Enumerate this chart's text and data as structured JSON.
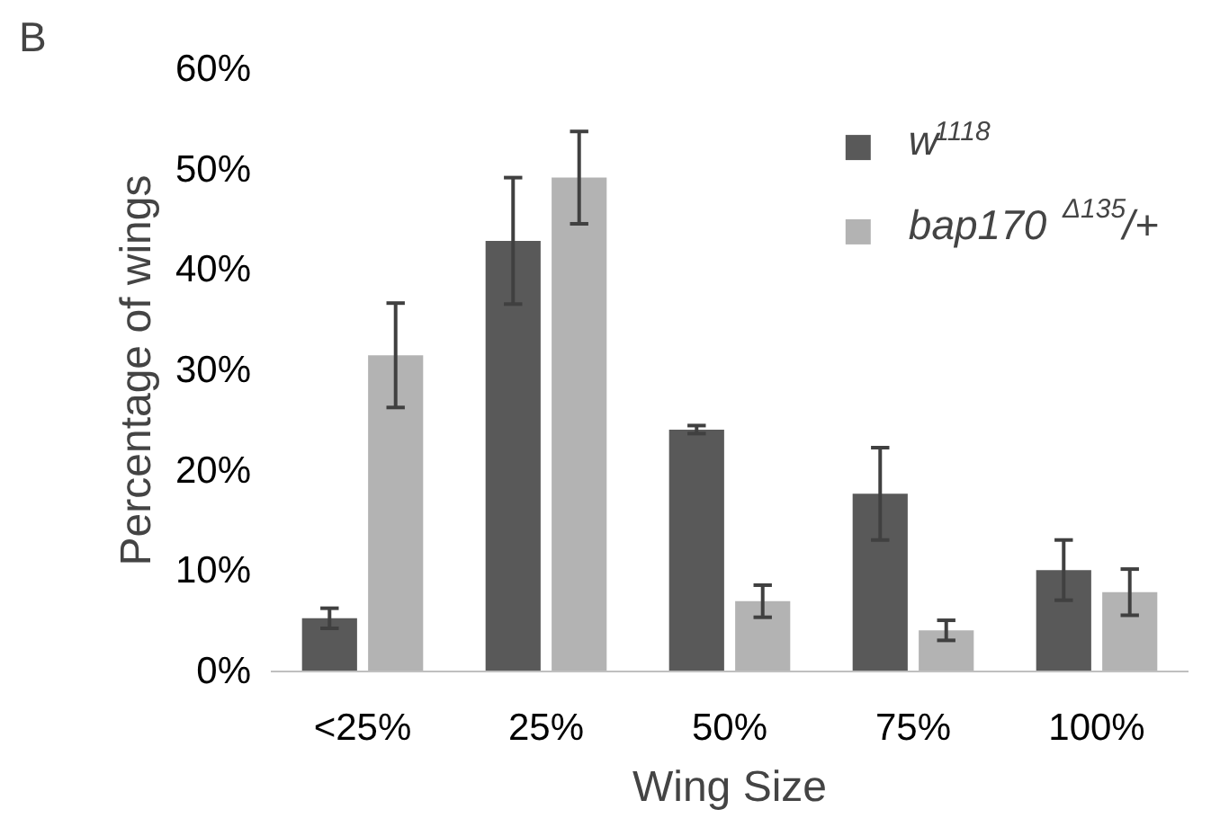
{
  "chart_data": {
    "type": "bar",
    "xlabel": "Wing Size",
    "ylabel": "Percentage of wings",
    "annotations": [
      "B"
    ],
    "categories": [
      "<25%",
      "25%",
      "50%",
      "75%",
      "100%"
    ],
    "series": [
      {
        "name": "w$^{1118}$",
        "color": "#595959",
        "values": [
          5.3,
          42.9,
          24.1,
          17.7,
          10.1
        ],
        "errors": [
          1.0,
          6.3,
          0.4,
          4.6,
          3.0
        ]
      },
      {
        "name": "bap170$^{Δ135}$/+",
        "color": "#b3b3b3",
        "values": [
          31.5,
          49.2,
          7.0,
          4.1,
          7.9
        ],
        "errors": [
          5.2,
          4.6,
          1.6,
          1.0,
          2.3
        ]
      }
    ],
    "ylim": [
      0,
      60
    ],
    "yticks": [
      {
        "value": 0,
        "label": "0%"
      },
      {
        "value": 10,
        "label": "10%"
      },
      {
        "value": 20,
        "label": "20%"
      },
      {
        "value": 30,
        "label": "30%"
      },
      {
        "value": 40,
        "label": "40%"
      },
      {
        "value": 50,
        "label": "50%"
      },
      {
        "value": 60,
        "label": "60%"
      }
    ],
    "legend": "top right",
    "grid": false
  }
}
